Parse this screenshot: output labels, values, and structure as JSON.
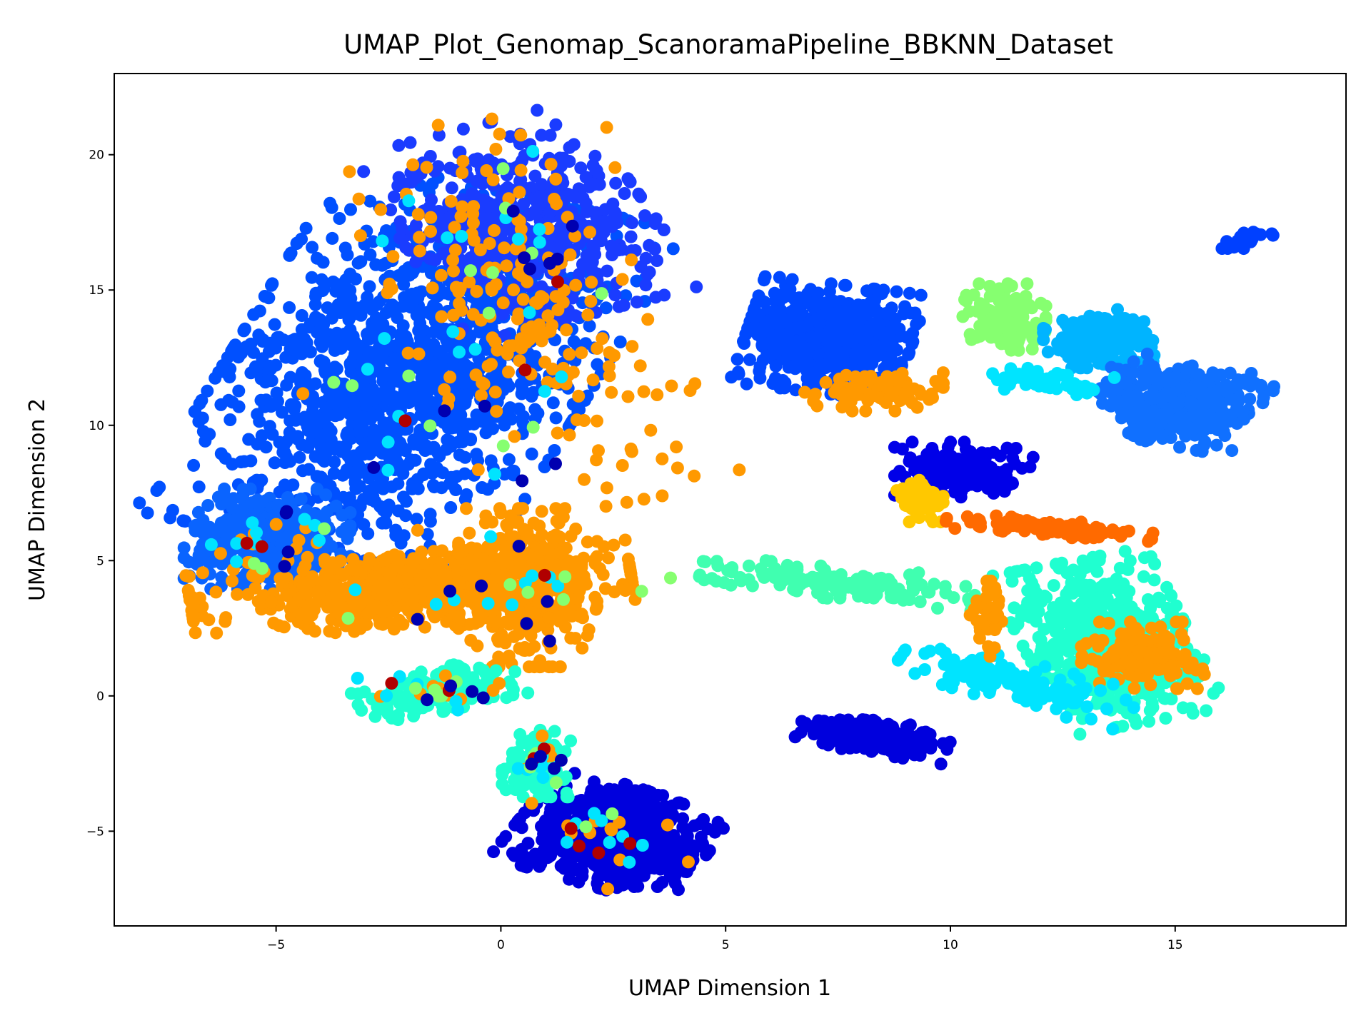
{
  "chart_data": {
    "type": "scatter",
    "title": "UMAP_Plot_Genomap_ScanoramaPipeline_BBKNN_Dataset",
    "xlabel": "UMAP Dimension 1",
    "ylabel": "UMAP Dimension 2",
    "xlim": [
      -8.6,
      18.8
    ],
    "ylim": [
      -8.5,
      23.0
    ],
    "xticks": [
      -5,
      0,
      5,
      10,
      15
    ],
    "yticks": [
      -5,
      0,
      5,
      10,
      15,
      20
    ],
    "xtick_labels": [
      "−5",
      "0",
      "5",
      "10",
      "15"
    ],
    "ytick_labels": [
      "−5",
      "0",
      "5",
      "10",
      "15",
      "20"
    ],
    "grid": false,
    "legend": false,
    "colormap": "jet",
    "marker": "circle",
    "clusters": [
      {
        "color": "#0050ff",
        "cx": -2.0,
        "cy": 12.0,
        "sx": 2.6,
        "sy": 4.5,
        "n": 1400,
        "rot": -0.35
      },
      {
        "color": "#1a3cff",
        "cx": 0.5,
        "cy": 17.5,
        "sx": 1.8,
        "sy": 2.4,
        "n": 500,
        "rot": 0.4
      },
      {
        "color": "#0a64ff",
        "cx": -5.2,
        "cy": 5.8,
        "sx": 1.2,
        "sy": 1.2,
        "n": 400,
        "rot": 0.0
      },
      {
        "color": "#ff9900",
        "cx": -2.0,
        "cy": 3.9,
        "sx": 3.2,
        "sy": 0.9,
        "n": 700,
        "rot": 0.1
      },
      {
        "color": "#ff9900",
        "cx": 0.6,
        "cy": 4.0,
        "sx": 1.0,
        "sy": 1.9,
        "n": 350,
        "rot": 0.0
      },
      {
        "color": "#ff9900",
        "cx": 0.5,
        "cy": 14.5,
        "sx": 1.8,
        "sy": 5.0,
        "n": 180,
        "rot": 0.3
      },
      {
        "color": "#0000dd",
        "cx": 2.5,
        "cy": -5.2,
        "sx": 1.4,
        "sy": 1.2,
        "n": 650,
        "rot": -0.45
      },
      {
        "color": "#20ffd0",
        "cx": -1.4,
        "cy": 0.2,
        "sx": 1.2,
        "sy": 0.5,
        "n": 180,
        "rot": 0.35
      },
      {
        "color": "#20ffd0",
        "cx": 0.8,
        "cy": -2.5,
        "sx": 0.5,
        "sy": 0.8,
        "n": 120,
        "rot": 0.0
      },
      {
        "color": "#0048ff",
        "cx": 7.3,
        "cy": 13.2,
        "sx": 1.2,
        "sy": 1.3,
        "n": 650,
        "rot": -0.2
      },
      {
        "color": "#ff9900",
        "cx": 8.3,
        "cy": 11.3,
        "sx": 1.0,
        "sy": 0.5,
        "n": 80,
        "rot": 0.0
      },
      {
        "color": "#86ff70",
        "cx": 11.2,
        "cy": 14.0,
        "sx": 0.6,
        "sy": 0.8,
        "n": 150,
        "rot": 0.0
      },
      {
        "color": "#00b4ff",
        "cx": 13.3,
        "cy": 13.2,
        "sx": 0.8,
        "sy": 0.7,
        "n": 200,
        "rot": 0.0
      },
      {
        "color": "#1070ff",
        "cx": 15.1,
        "cy": 10.8,
        "sx": 1.2,
        "sy": 1.0,
        "n": 380,
        "rot": -0.3
      },
      {
        "color": "#00e4ff",
        "cx": 12.2,
        "cy": 11.6,
        "sx": 0.9,
        "sy": 0.3,
        "n": 60,
        "rot": -0.2
      },
      {
        "color": "#0000e8",
        "cx": 10.3,
        "cy": 8.3,
        "sx": 1.0,
        "sy": 0.7,
        "n": 160,
        "rot": 0.0
      },
      {
        "color": "#ffc800",
        "cx": 9.3,
        "cy": 7.2,
        "sx": 0.35,
        "sy": 0.5,
        "n": 60,
        "rot": 0.0
      },
      {
        "color": "#ff6a00",
        "cx": 12.2,
        "cy": 6.2,
        "sx": 1.5,
        "sy": 0.2,
        "n": 120,
        "rot": -0.12
      },
      {
        "color": "#40ffb0",
        "cx": 7.5,
        "cy": 4.2,
        "sx": 2.0,
        "sy": 0.4,
        "n": 160,
        "rot": -0.15
      },
      {
        "color": "#20ffd0",
        "cx": 13.5,
        "cy": 2.0,
        "sx": 1.2,
        "sy": 2.0,
        "n": 600,
        "rot": 0.3
      },
      {
        "color": "#ff9900",
        "cx": 14.3,
        "cy": 1.5,
        "sx": 0.9,
        "sy": 0.8,
        "n": 150,
        "rot": 0.0
      },
      {
        "color": "#00e4ff",
        "cx": 11.5,
        "cy": 0.5,
        "sx": 1.8,
        "sy": 0.5,
        "n": 150,
        "rot": -0.4
      },
      {
        "color": "#0000dd",
        "cx": 8.3,
        "cy": -1.5,
        "sx": 1.1,
        "sy": 0.4,
        "n": 220,
        "rot": -0.25
      },
      {
        "color": "#ff9900",
        "cx": 10.9,
        "cy": 3.0,
        "sx": 0.3,
        "sy": 1.0,
        "n": 40,
        "rot": 0.0
      },
      {
        "color": "#0040ff",
        "cx": 16.6,
        "cy": 16.8,
        "sx": 0.4,
        "sy": 0.2,
        "n": 25,
        "rot": 0.45
      }
    ],
    "sprinkles": [
      {
        "color": "#ff9900",
        "n": 90
      },
      {
        "color": "#00e4ff",
        "n": 60
      },
      {
        "color": "#86ff70",
        "n": 35
      },
      {
        "color": "#b00000",
        "n": 14
      },
      {
        "color": "#0000b0",
        "n": 30
      }
    ]
  }
}
